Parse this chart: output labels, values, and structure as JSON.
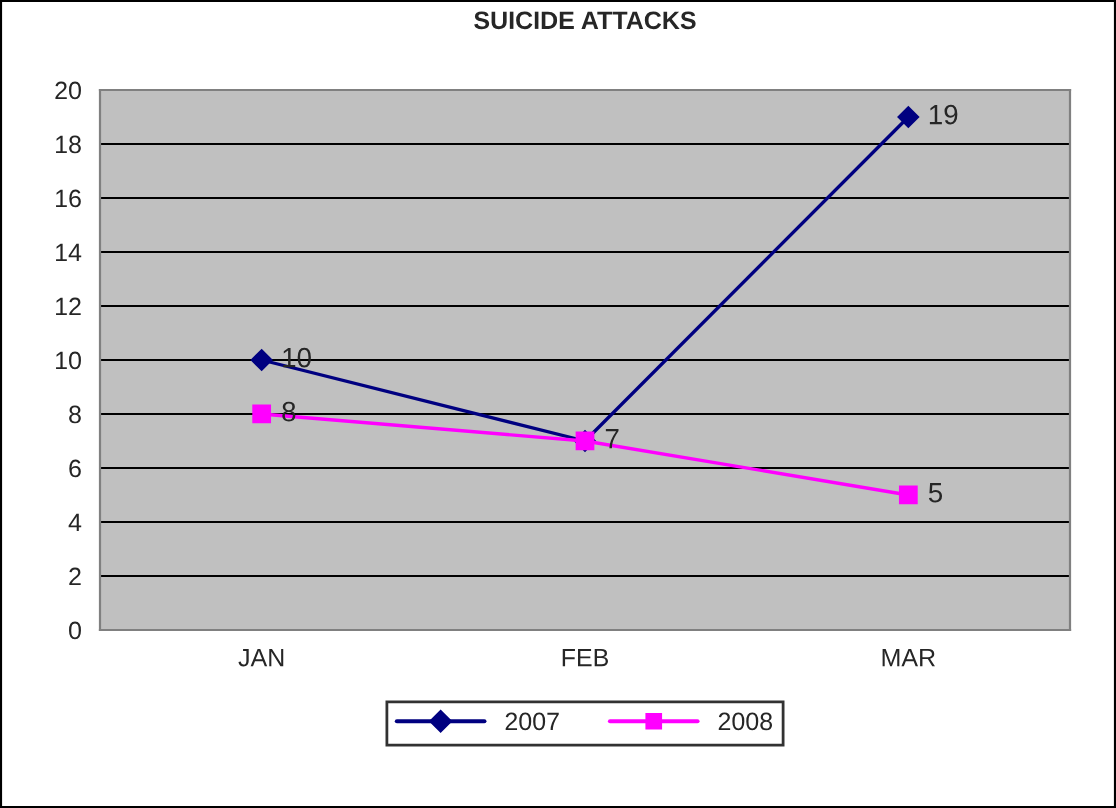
{
  "chart_data": {
    "type": "line",
    "title": "SUICIDE ATTACKS",
    "categories": [
      "JAN",
      "FEB",
      "MAR"
    ],
    "series": [
      {
        "name": "2007",
        "color": "#000080",
        "marker": "diamond",
        "values": [
          10,
          7,
          19
        ],
        "value_labels": [
          "10",
          "7",
          "19"
        ]
      },
      {
        "name": "2008",
        "color": "#ff00ff",
        "marker": "square",
        "values": [
          8,
          7,
          5
        ],
        "value_labels": [
          "8",
          null,
          "5"
        ]
      }
    ],
    "ylim": [
      0,
      20
    ],
    "yticks": [
      0,
      2,
      4,
      6,
      8,
      10,
      12,
      14,
      16,
      18,
      20
    ],
    "grid": "y",
    "legend": "bottom"
  }
}
